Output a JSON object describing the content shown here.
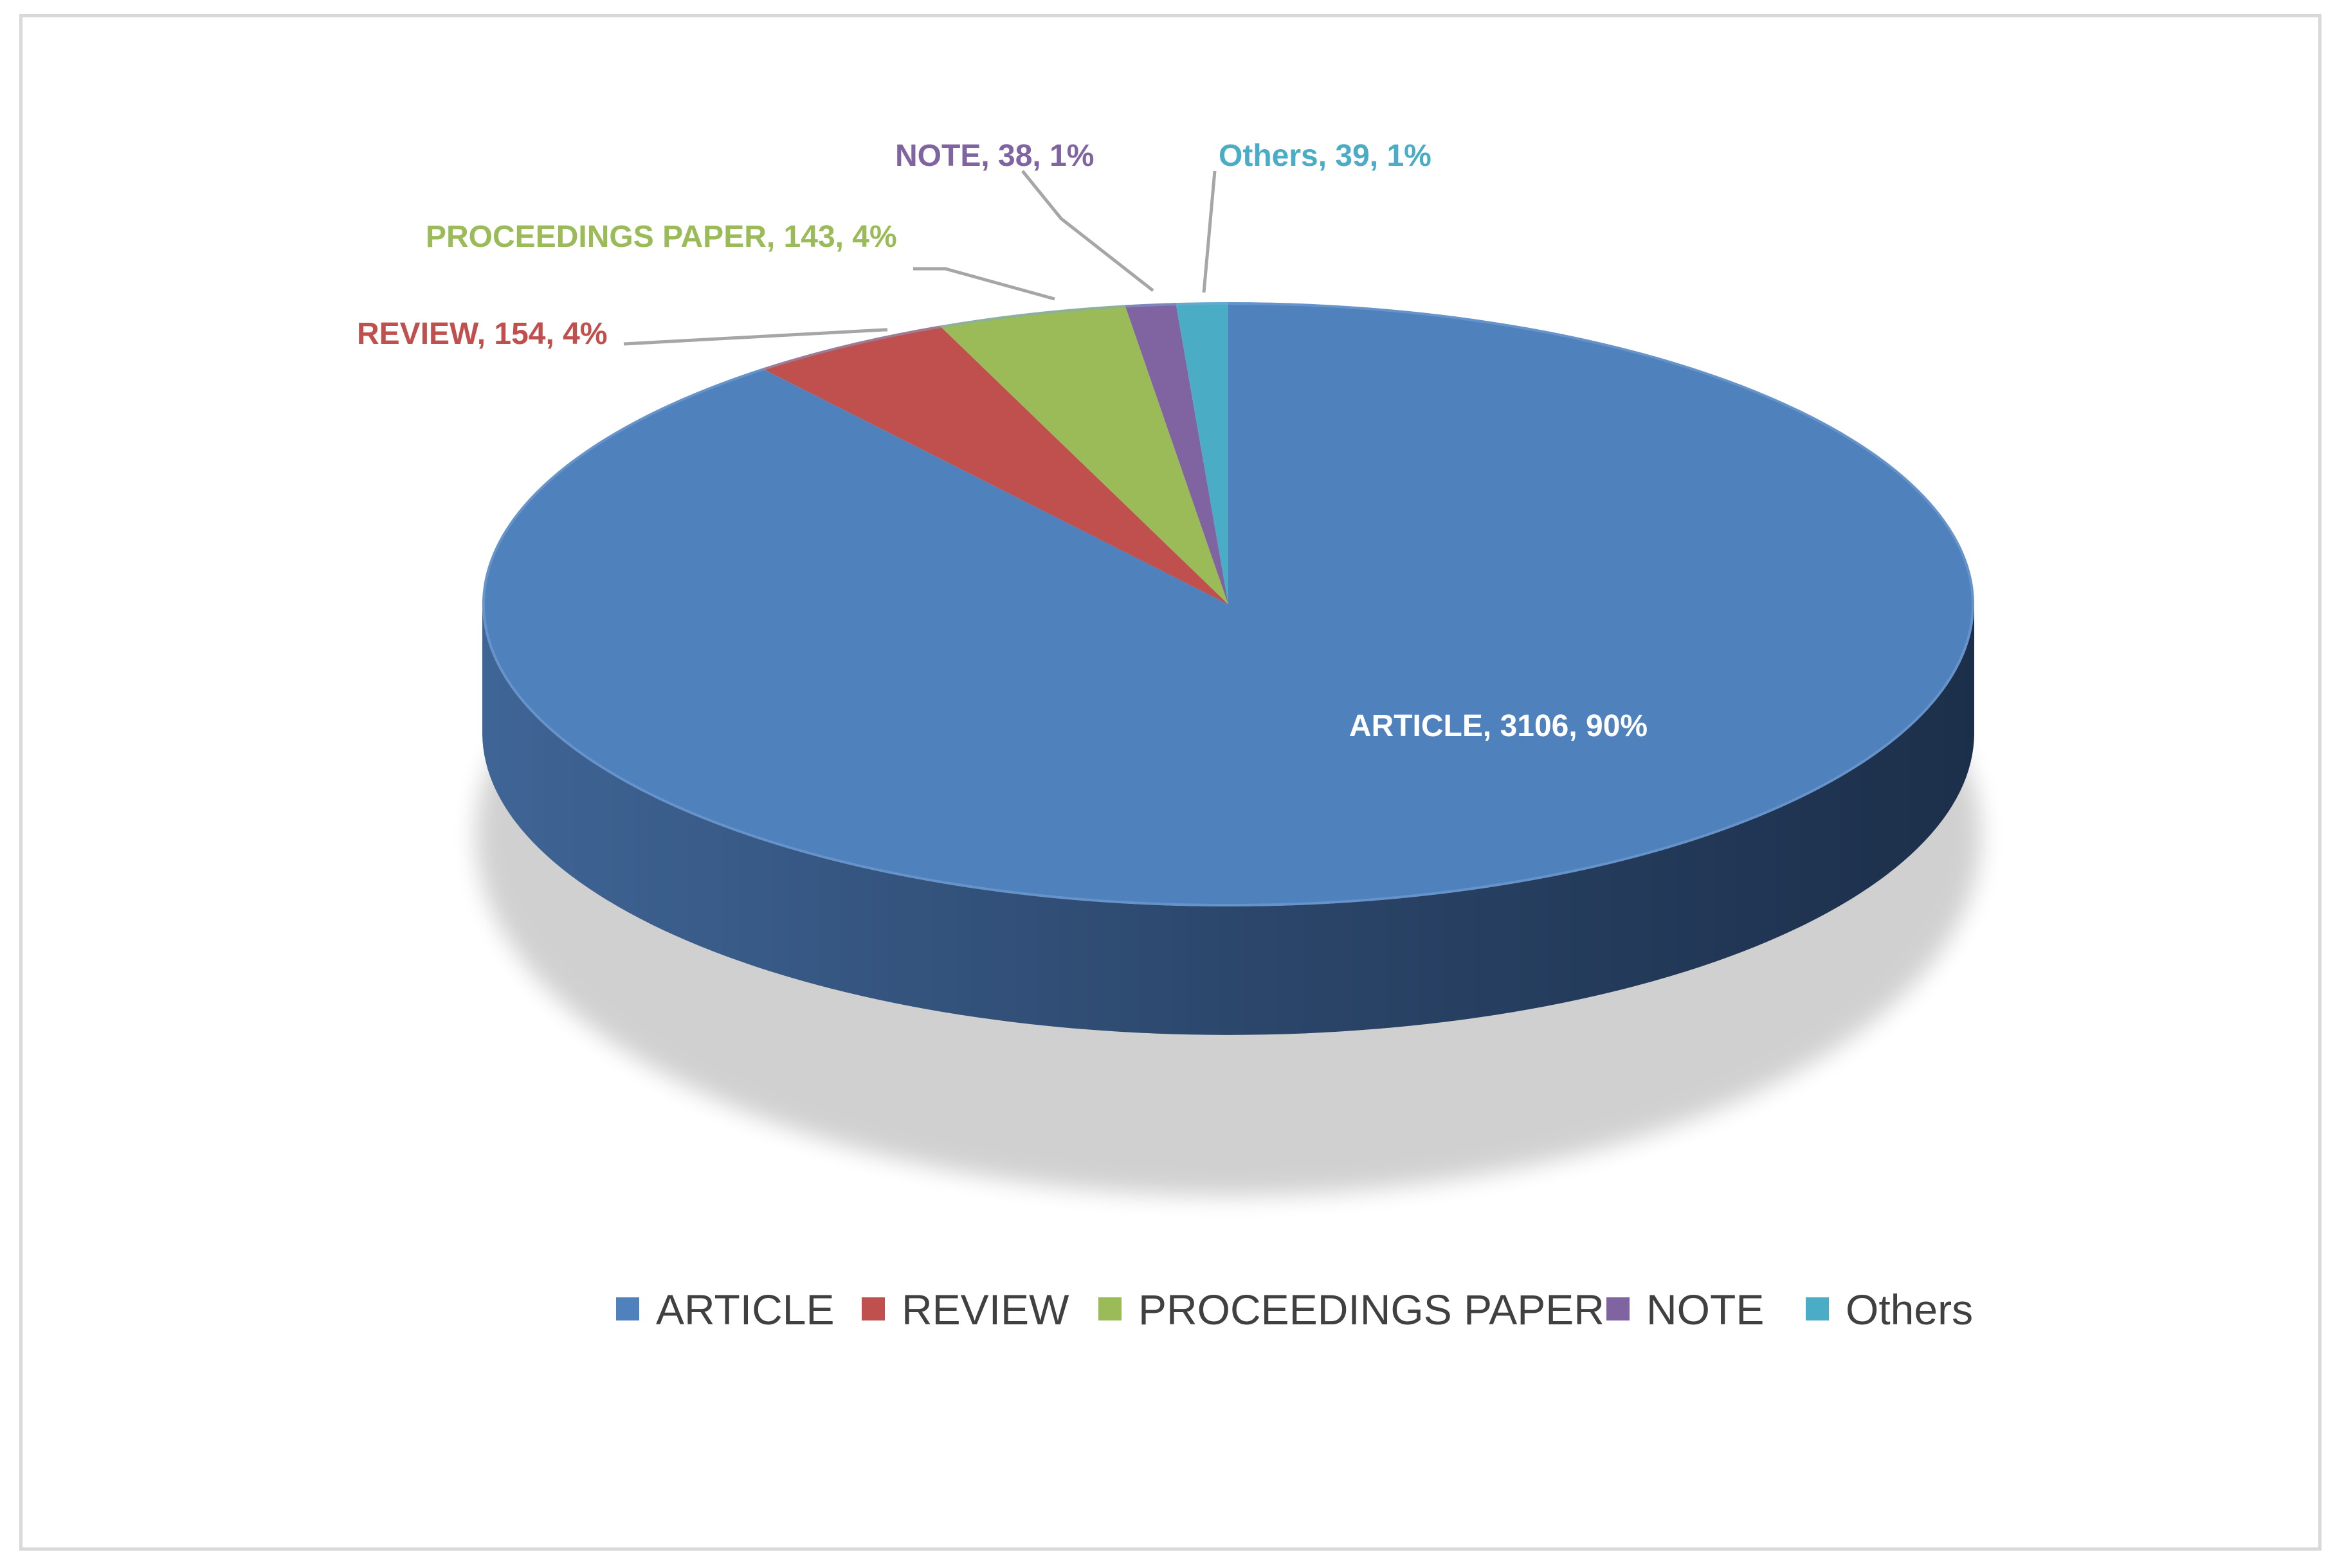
{
  "chart_data": {
    "type": "pie",
    "style": "3d",
    "title": "",
    "slices": [
      {
        "name": "ARTICLE",
        "value": 3106,
        "label": "ARTICLE, 3106, 90%",
        "color": "#4f81bd"
      },
      {
        "name": "REVIEW",
        "value": 154,
        "label": "REVIEW, 154, 4%",
        "color": "#c0504d"
      },
      {
        "name": "PROCEEDINGS PAPER",
        "value": 143,
        "label": "PROCEEDINGS PAPER, 143, 4%",
        "color": "#9bbb59"
      },
      {
        "name": "NOTE",
        "value": 38,
        "label": "NOTE, 38, 1%",
        "color": "#8064a2"
      },
      {
        "name": "Others",
        "value": 39,
        "label": "Others, 39, 1%",
        "color": "#4bacc6"
      }
    ],
    "legend": {
      "position": "bottom"
    }
  }
}
